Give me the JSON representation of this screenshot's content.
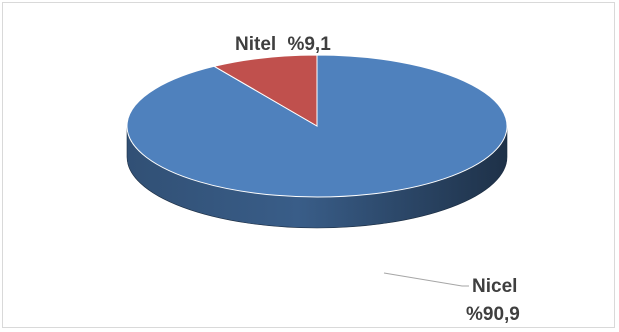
{
  "chart_data": {
    "type": "pie",
    "style": "3d",
    "categories": [
      "Nicel",
      "Nitel"
    ],
    "values": [
      90.9,
      9.1
    ],
    "colors": [
      "#4f81bd",
      "#c0504d"
    ],
    "data_labels": [
      {
        "name": "Nicel",
        "value": "%90,9"
      },
      {
        "name": "Nitel",
        "value": "%9,1"
      }
    ],
    "start_angle_deg": 0,
    "direction": "clockwise",
    "legend": "none"
  }
}
